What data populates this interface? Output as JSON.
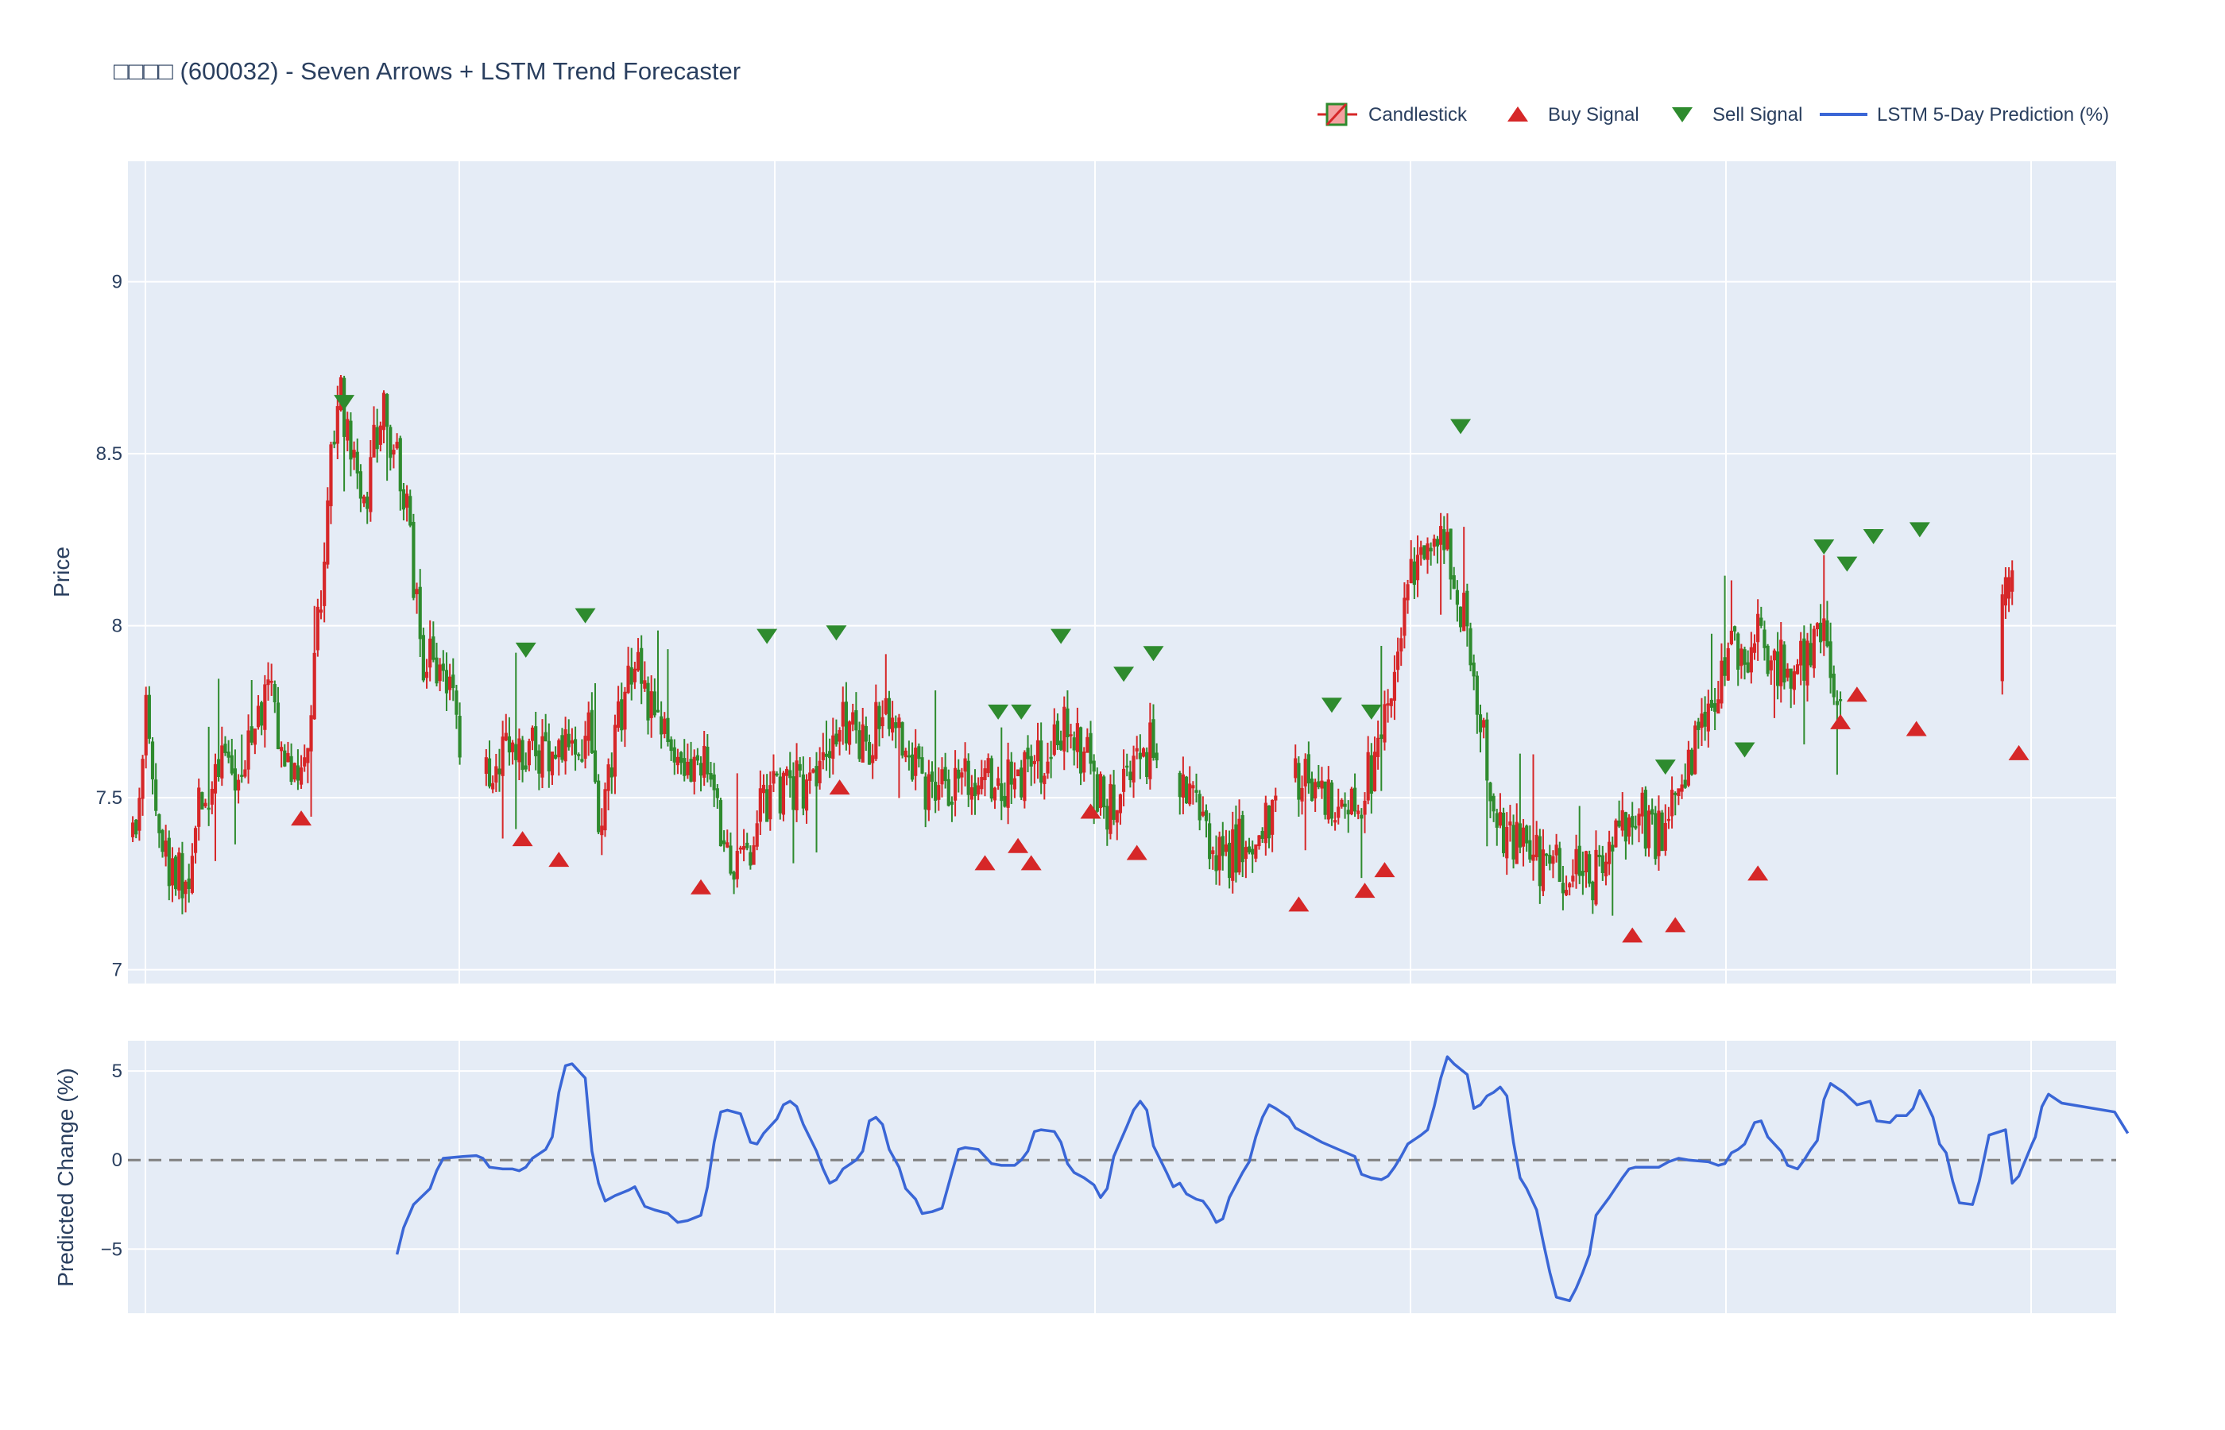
{
  "chart_data": {
    "type": "candlestick",
    "title": "□□□□ (600032) - Seven Arrows + LSTM Trend Forecaster",
    "legend": {
      "placement": "top-right",
      "items": [
        {
          "key": "candle",
          "label": "Candlestick"
        },
        {
          "key": "buy",
          "label": "Buy Signal"
        },
        {
          "key": "sell",
          "label": "Sell Signal"
        },
        {
          "key": "lstm",
          "label": "LSTM 5-Day Prediction (%)"
        }
      ]
    },
    "colors": {
      "increasing": "#d62728",
      "decreasing": "#2e8b2e",
      "buy": "#d62728",
      "sell": "#2e8b2e",
      "lstm": "#3a66d6",
      "plot_bg": "#e5ecf6",
      "grid": "#ffffff",
      "zero_line": "#808080"
    },
    "grid": true,
    "n_sessions": 600,
    "price_panel": {
      "ylabel": "Price",
      "ylim": [
        6.96,
        9.35
      ],
      "yticks": [
        7,
        7.5,
        8,
        8.5,
        9
      ],
      "ytick_labels": [
        "7",
        "7.5",
        "8",
        "8.5",
        "9"
      ],
      "trend_anchors": [
        [
          0,
          7.4
        ],
        [
          2,
          7.42
        ],
        [
          4,
          7.72
        ],
        [
          8,
          7.42
        ],
        [
          12,
          7.28
        ],
        [
          15,
          7.25
        ],
        [
          18,
          7.3
        ],
        [
          20,
          7.5
        ],
        [
          25,
          7.56
        ],
        [
          35,
          7.62
        ],
        [
          42,
          7.8
        ],
        [
          47,
          7.58
        ],
        [
          52,
          7.62
        ],
        [
          56,
          8.0
        ],
        [
          62,
          8.7
        ],
        [
          70,
          8.35
        ],
        [
          75,
          8.65
        ],
        [
          82,
          8.4
        ],
        [
          88,
          7.9
        ],
        [
          95,
          7.85
        ],
        [
          100,
          7.58
        ],
        [
          108,
          7.58
        ],
        [
          120,
          7.65
        ],
        [
          130,
          7.62
        ],
        [
          138,
          7.7
        ],
        [
          142,
          7.4
        ],
        [
          147,
          7.7
        ],
        [
          152,
          7.9
        ],
        [
          158,
          7.74
        ],
        [
          165,
          7.65
        ],
        [
          175,
          7.55
        ],
        [
          180,
          7.35
        ],
        [
          185,
          7.3
        ],
        [
          190,
          7.48
        ],
        [
          198,
          7.52
        ],
        [
          205,
          7.55
        ],
        [
          215,
          7.75
        ],
        [
          222,
          7.65
        ],
        [
          228,
          7.75
        ],
        [
          235,
          7.65
        ],
        [
          240,
          7.5
        ],
        [
          248,
          7.55
        ],
        [
          255,
          7.58
        ],
        [
          262,
          7.52
        ],
        [
          268,
          7.55
        ],
        [
          275,
          7.62
        ],
        [
          282,
          7.7
        ],
        [
          288,
          7.62
        ],
        [
          295,
          7.48
        ],
        [
          302,
          7.55
        ],
        [
          308,
          7.65
        ],
        [
          315,
          7.6
        ],
        [
          322,
          7.45
        ],
        [
          328,
          7.32
        ],
        [
          333,
          7.35
        ],
        [
          338,
          7.38
        ],
        [
          345,
          7.42
        ],
        [
          350,
          7.52
        ],
        [
          355,
          7.58
        ],
        [
          360,
          7.5
        ],
        [
          365,
          7.48
        ],
        [
          372,
          7.52
        ],
        [
          378,
          7.62
        ],
        [
          383,
          8.0
        ],
        [
          390,
          8.22
        ],
        [
          395,
          8.3
        ],
        [
          400,
          8.15
        ],
        [
          405,
          7.95
        ],
        [
          410,
          7.6
        ],
        [
          413,
          7.4
        ],
        [
          418,
          7.38
        ],
        [
          425,
          7.32
        ],
        [
          432,
          7.3
        ],
        [
          438,
          7.32
        ],
        [
          442,
          7.28
        ],
        [
          448,
          7.38
        ],
        [
          455,
          7.48
        ],
        [
          460,
          7.38
        ],
        [
          465,
          7.45
        ],
        [
          470,
          7.55
        ],
        [
          475,
          7.7
        ],
        [
          480,
          7.8
        ],
        [
          485,
          7.95
        ],
        [
          488,
          7.82
        ],
        [
          492,
          8.0
        ],
        [
          497,
          7.9
        ],
        [
          502,
          7.85
        ],
        [
          507,
          7.92
        ],
        [
          512,
          7.95
        ],
        [
          517,
          7.82
        ]
      ],
      "gaps": [
        [
          100,
          106
        ],
        [
          311,
          316
        ],
        [
          347,
          351
        ],
        [
          520,
          565
        ]
      ],
      "late_bars": [
        [
          566,
          7.84,
          8.09
        ],
        [
          567,
          8.06,
          8.14
        ],
        [
          568,
          8.08,
          8.14
        ],
        [
          569,
          8.1,
          8.16
        ]
      ],
      "buy_signals": [
        [
          51,
          7.44
        ],
        [
          118,
          7.38
        ],
        [
          129,
          7.32
        ],
        [
          172,
          7.24
        ],
        [
          214,
          7.53
        ],
        [
          258,
          7.31
        ],
        [
          268,
          7.36
        ],
        [
          272,
          7.31
        ],
        [
          290,
          7.46
        ],
        [
          304,
          7.34
        ],
        [
          353,
          7.19
        ],
        [
          373,
          7.23
        ],
        [
          379,
          7.29
        ],
        [
          454,
          7.1
        ],
        [
          467,
          7.13
        ],
        [
          492,
          7.28
        ],
        [
          517,
          7.72
        ],
        [
          522,
          7.8
        ],
        [
          540,
          7.7
        ],
        [
          571,
          7.63
        ]
      ],
      "sell_signals": [
        [
          64,
          8.65
        ],
        [
          119,
          7.93
        ],
        [
          137,
          8.03
        ],
        [
          192,
          7.97
        ],
        [
          213,
          7.98
        ],
        [
          262,
          7.75
        ],
        [
          269,
          7.75
        ],
        [
          281,
          7.97
        ],
        [
          300,
          7.86
        ],
        [
          309,
          7.92
        ],
        [
          363,
          7.77
        ],
        [
          375,
          7.75
        ],
        [
          402,
          8.58
        ],
        [
          464,
          7.59
        ],
        [
          488,
          7.64
        ],
        [
          512,
          8.23
        ],
        [
          519,
          8.18
        ],
        [
          527,
          8.26
        ],
        [
          541,
          8.28
        ]
      ]
    },
    "prediction_panel": {
      "ylabel": "Predicted Change (%)",
      "ylim": [
        -8.6,
        6.7
      ],
      "yticks": [
        -5,
        0,
        5
      ],
      "ytick_labels": [
        "−5",
        "0",
        "5"
      ],
      "zero_line": "dashed",
      "points": [
        [
          80,
          -5.3
        ],
        [
          82,
          -3.8
        ],
        [
          85,
          -2.5
        ],
        [
          90,
          -1.6
        ],
        [
          92,
          -0.6
        ],
        [
          94,
          0.1
        ],
        [
          100,
          0.2
        ],
        [
          104,
          0.25
        ],
        [
          106,
          0.1
        ],
        [
          108,
          -0.4
        ],
        [
          112,
          -0.5
        ],
        [
          115,
          -0.5
        ],
        [
          117,
          -0.6
        ],
        [
          119,
          -0.4
        ],
        [
          121,
          0.1
        ],
        [
          125,
          0.6
        ],
        [
          127,
          1.3
        ],
        [
          129,
          3.8
        ],
        [
          131,
          5.3
        ],
        [
          133,
          5.4
        ],
        [
          135,
          5.0
        ],
        [
          137,
          4.6
        ],
        [
          139,
          0.5
        ],
        [
          141,
          -1.3
        ],
        [
          143,
          -2.3
        ],
        [
          146,
          -2.0
        ],
        [
          150,
          -1.7
        ],
        [
          152,
          -1.5
        ],
        [
          155,
          -2.6
        ],
        [
          158,
          -2.8
        ],
        [
          162,
          -3.0
        ],
        [
          165,
          -3.5
        ],
        [
          168,
          -3.4
        ],
        [
          172,
          -3.1
        ],
        [
          174,
          -1.5
        ],
        [
          176,
          1.0
        ],
        [
          178,
          2.7
        ],
        [
          180,
          2.8
        ],
        [
          184,
          2.6
        ],
        [
          187,
          1.0
        ],
        [
          189,
          0.9
        ],
        [
          191,
          1.5
        ],
        [
          195,
          2.3
        ],
        [
          197,
          3.1
        ],
        [
          199,
          3.3
        ],
        [
          201,
          3.0
        ],
        [
          203,
          2.0
        ],
        [
          207,
          0.5
        ],
        [
          209,
          -0.5
        ],
        [
          211,
          -1.3
        ],
        [
          213,
          -1.1
        ],
        [
          215,
          -0.5
        ],
        [
          219,
          0.0
        ],
        [
          221,
          0.5
        ],
        [
          223,
          2.2
        ],
        [
          225,
          2.4
        ],
        [
          227,
          2.0
        ],
        [
          229,
          0.6
        ],
        [
          232,
          -0.4
        ],
        [
          234,
          -1.6
        ],
        [
          237,
          -2.2
        ],
        [
          239,
          -3.0
        ],
        [
          242,
          -2.9
        ],
        [
          245,
          -2.7
        ],
        [
          248,
          -0.7
        ],
        [
          250,
          0.6
        ],
        [
          252,
          0.7
        ],
        [
          256,
          0.6
        ],
        [
          260,
          -0.2
        ],
        [
          263,
          -0.3
        ],
        [
          267,
          -0.3
        ],
        [
          269,
          0.0
        ],
        [
          271,
          0.5
        ],
        [
          273,
          1.6
        ],
        [
          275,
          1.7
        ],
        [
          279,
          1.6
        ],
        [
          281,
          1.0
        ],
        [
          283,
          -0.2
        ],
        [
          285,
          -0.7
        ],
        [
          288,
          -1.0
        ],
        [
          291,
          -1.4
        ],
        [
          293,
          -2.1
        ],
        [
          295,
          -1.6
        ],
        [
          297,
          0.2
        ],
        [
          301,
          1.9
        ],
        [
          303,
          2.8
        ],
        [
          305,
          3.3
        ],
        [
          307,
          2.8
        ],
        [
          309,
          0.8
        ],
        [
          313,
          -0.7
        ],
        [
          315,
          -1.5
        ],
        [
          317,
          -1.3
        ],
        [
          319,
          -1.9
        ],
        [
          322,
          -2.2
        ],
        [
          324,
          -2.3
        ],
        [
          326,
          -2.8
        ],
        [
          328,
          -3.5
        ],
        [
          330,
          -3.3
        ],
        [
          332,
          -2.1
        ],
        [
          336,
          -0.7
        ],
        [
          338,
          -0.1
        ],
        [
          340,
          1.3
        ],
        [
          342,
          2.4
        ],
        [
          344,
          3.1
        ],
        [
          346,
          2.9
        ],
        [
          350,
          2.4
        ],
        [
          352,
          1.8
        ],
        [
          356,
          1.4
        ],
        [
          360,
          1.0
        ],
        [
          365,
          0.6
        ],
        [
          370,
          0.2
        ],
        [
          372,
          -0.8
        ],
        [
          375,
          -1.0
        ],
        [
          378,
          -1.1
        ],
        [
          380,
          -0.9
        ],
        [
          382,
          -0.4
        ],
        [
          384,
          0.2
        ],
        [
          386,
          0.9
        ],
        [
          390,
          1.4
        ],
        [
          392,
          1.7
        ],
        [
          394,
          3.0
        ],
        [
          396,
          4.6
        ],
        [
          398,
          5.8
        ],
        [
          400,
          5.4
        ],
        [
          404,
          4.8
        ],
        [
          406,
          2.9
        ],
        [
          408,
          3.1
        ],
        [
          410,
          3.6
        ],
        [
          412,
          3.8
        ],
        [
          414,
          4.1
        ],
        [
          416,
          3.6
        ],
        [
          418,
          1.0
        ],
        [
          420,
          -1.0
        ],
        [
          422,
          -1.6
        ],
        [
          425,
          -2.8
        ],
        [
          427,
          -4.6
        ],
        [
          429,
          -6.3
        ],
        [
          431,
          -7.7
        ],
        [
          433,
          -7.8
        ],
        [
          435,
          -7.9
        ],
        [
          437,
          -7.2
        ],
        [
          439,
          -6.3
        ],
        [
          441,
          -5.3
        ],
        [
          443,
          -3.1
        ],
        [
          447,
          -2.1
        ],
        [
          451,
          -1.0
        ],
        [
          453,
          -0.5
        ],
        [
          455,
          -0.4
        ],
        [
          462,
          -0.4
        ],
        [
          465,
          -0.1
        ],
        [
          468,
          0.1
        ],
        [
          471,
          0.0
        ],
        [
          477,
          -0.1
        ],
        [
          480,
          -0.3
        ],
        [
          482,
          -0.2
        ],
        [
          484,
          0.4
        ],
        [
          486,
          0.6
        ],
        [
          488,
          0.9
        ],
        [
          491,
          2.1
        ],
        [
          493,
          2.2
        ],
        [
          495,
          1.3
        ],
        [
          499,
          0.5
        ],
        [
          501,
          -0.3
        ],
        [
          504,
          -0.5
        ],
        [
          506,
          0.0
        ],
        [
          508,
          0.6
        ],
        [
          510,
          1.1
        ],
        [
          512,
          3.4
        ],
        [
          514,
          4.3
        ],
        [
          518,
          3.8
        ],
        [
          522,
          3.1
        ],
        [
          526,
          3.3
        ],
        [
          528,
          2.2
        ],
        [
          532,
          2.1
        ],
        [
          534,
          2.5
        ],
        [
          537,
          2.5
        ],
        [
          539,
          2.9
        ],
        [
          541,
          3.9
        ],
        [
          543,
          3.2
        ],
        [
          545,
          2.4
        ],
        [
          547,
          0.9
        ],
        [
          549,
          0.4
        ],
        [
          551,
          -1.2
        ],
        [
          553,
          -2.4
        ],
        [
          557,
          -2.5
        ],
        [
          559,
          -1.2
        ],
        [
          562,
          1.4
        ],
        [
          567,
          1.7
        ],
        [
          569,
          -1.3
        ],
        [
          571,
          -0.9
        ],
        [
          575,
          0.9
        ],
        [
          576,
          1.3
        ],
        [
          578,
          3.0
        ],
        [
          580,
          3.7
        ],
        [
          584,
          3.2
        ],
        [
          600,
          2.7
        ],
        [
          604,
          1.5
        ]
      ]
    }
  }
}
